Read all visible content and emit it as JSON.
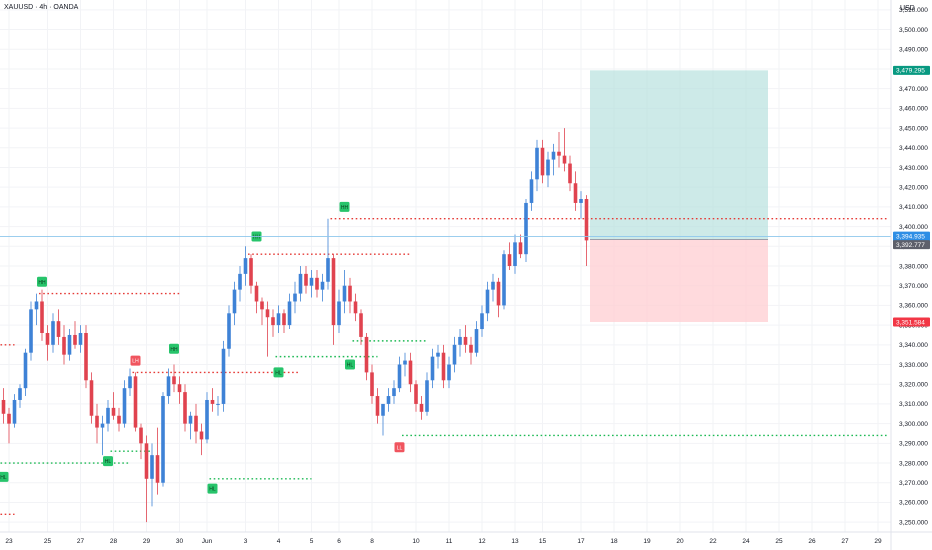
{
  "header": {
    "title": "XAUUSD · 4h · OANDA",
    "currency": "USD"
  },
  "colors": {
    "up": "#3e82d6",
    "down": "#e0434f",
    "profit_zone": "#b2dfdb",
    "loss_zone": "#ffcdd2",
    "take_profit_tag": "#089981",
    "stop_loss_tag": "#f23645",
    "last_price_tag": "#2e8ee5",
    "close_tag": "#5d606b",
    "resistance_line": "#e53935",
    "support_line": "#1db954",
    "swing_high_label": "#27c46b",
    "swing_low_label": "#f0555f",
    "last_price_line": "#8ec7ec"
  },
  "chart_data": {
    "type": "candlestick",
    "symbol": "XAUUSD",
    "interval": "4h",
    "exchange": "OANDA",
    "ylim": [
      3245,
      3515
    ],
    "y_ticks": [
      3250,
      3260,
      3270,
      3280,
      3290,
      3300,
      3310,
      3320,
      3330,
      3340,
      3350,
      3360,
      3370,
      3380,
      3390,
      3400,
      3410,
      3420,
      3430,
      3440,
      3450,
      3460,
      3470,
      3480,
      3490,
      3500,
      3510
    ],
    "y_tick_labels": [
      "3,250.000",
      "3,260.000",
      "3,270.000",
      "3,280.000",
      "3,290.000",
      "3,300.000",
      "3,310.000",
      "3,320.000",
      "3,330.000",
      "3,340.000",
      "3,350.000",
      "3,360.000",
      "3,370.000",
      "3,380.000",
      "3,390.000",
      "3,400.000",
      "3,410.000",
      "3,420.000",
      "3,430.000",
      "3,440.000",
      "3,450.000",
      "3,460.000",
      "3,470.000",
      "3,480.000",
      "3,490.000",
      "3,500.000",
      "3,510.000"
    ],
    "x_labels": [
      {
        "label": "23",
        "candle": 1
      },
      {
        "label": "25",
        "candle": 8
      },
      {
        "label": "27",
        "candle": 14
      },
      {
        "label": "28",
        "candle": 20
      },
      {
        "label": "29",
        "candle": 26
      },
      {
        "label": "30",
        "candle": 32
      },
      {
        "label": "Jun",
        "candle": 37
      },
      {
        "label": "3",
        "candle": 44
      },
      {
        "label": "4",
        "candle": 50
      },
      {
        "label": "5",
        "candle": 56
      },
      {
        "label": "6",
        "candle": 61
      },
      {
        "label": "8",
        "candle": 67
      },
      {
        "label": "10",
        "candle": 75
      },
      {
        "label": "11",
        "candle": 81
      },
      {
        "label": "12",
        "candle": 87
      },
      {
        "label": "13",
        "candle": 93
      },
      {
        "label": "15",
        "candle": 98
      },
      {
        "label": "17",
        "candle": 105
      },
      {
        "label": "18",
        "candle": 111
      },
      {
        "label": "19",
        "candle": 117
      },
      {
        "label": "20",
        "candle": 123
      },
      {
        "label": "22",
        "candle": 129
      },
      {
        "label": "24",
        "candle": 135
      },
      {
        "label": "25",
        "candle": 141
      },
      {
        "label": "26",
        "candle": 147
      },
      {
        "label": "27",
        "candle": 153
      },
      {
        "label": "29",
        "candle": 159
      }
    ],
    "candles": [
      [
        3312,
        3318,
        3300,
        3305
      ],
      [
        3305,
        3308,
        3290,
        3300
      ],
      [
        3300,
        3315,
        3298,
        3312
      ],
      [
        3312,
        3320,
        3308,
        3318
      ],
      [
        3318,
        3338,
        3314,
        3336
      ],
      [
        3336,
        3362,
        3332,
        3358
      ],
      [
        3358,
        3366,
        3350,
        3362
      ],
      [
        3362,
        3368,
        3342,
        3346
      ],
      [
        3346,
        3350,
        3332,
        3340
      ],
      [
        3340,
        3356,
        3336,
        3352
      ],
      [
        3352,
        3358,
        3340,
        3344
      ],
      [
        3344,
        3350,
        3330,
        3335
      ],
      [
        3335,
        3348,
        3332,
        3345
      ],
      [
        3345,
        3352,
        3338,
        3340
      ],
      [
        3340,
        3350,
        3336,
        3346
      ],
      [
        3346,
        3350,
        3318,
        3322
      ],
      [
        3322,
        3326,
        3300,
        3304
      ],
      [
        3304,
        3310,
        3290,
        3298
      ],
      [
        3298,
        3304,
        3284,
        3300
      ],
      [
        3300,
        3312,
        3296,
        3308
      ],
      [
        3308,
        3316,
        3302,
        3304
      ],
      [
        3304,
        3308,
        3296,
        3300
      ],
      [
        3300,
        3322,
        3298,
        3318
      ],
      [
        3318,
        3328,
        3314,
        3324
      ],
      [
        3324,
        3326,
        3296,
        3298
      ],
      [
        3298,
        3300,
        3282,
        3290
      ],
      [
        3290,
        3294,
        3250,
        3272
      ],
      [
        3272,
        3290,
        3258,
        3284
      ],
      [
        3284,
        3298,
        3264,
        3270
      ],
      [
        3270,
        3316,
        3268,
        3314
      ],
      [
        3314,
        3328,
        3310,
        3324
      ],
      [
        3324,
        3330,
        3316,
        3320
      ],
      [
        3320,
        3324,
        3310,
        3316
      ],
      [
        3316,
        3320,
        3296,
        3300
      ],
      [
        3300,
        3306,
        3292,
        3304
      ],
      [
        3304,
        3310,
        3290,
        3296
      ],
      [
        3296,
        3300,
        3284,
        3292
      ],
      [
        3292,
        3316,
        3290,
        3312
      ],
      [
        3312,
        3318,
        3306,
        3310
      ],
      [
        3310,
        3314,
        3304,
        3310
      ],
      [
        3310,
        3342,
        3306,
        3338
      ],
      [
        3338,
        3360,
        3334,
        3356
      ],
      [
        3356,
        3372,
        3350,
        3368
      ],
      [
        3368,
        3380,
        3362,
        3376
      ],
      [
        3376,
        3390,
        3370,
        3384
      ],
      [
        3384,
        3386,
        3366,
        3370
      ],
      [
        3370,
        3372,
        3356,
        3362
      ],
      [
        3362,
        3364,
        3350,
        3358
      ],
      [
        3358,
        3362,
        3334,
        3354
      ],
      [
        3354,
        3358,
        3344,
        3350
      ],
      [
        3350,
        3360,
        3346,
        3356
      ],
      [
        3356,
        3358,
        3346,
        3350
      ],
      [
        3350,
        3366,
        3348,
        3362
      ],
      [
        3362,
        3372,
        3356,
        3366
      ],
      [
        3366,
        3380,
        3362,
        3376
      ],
      [
        3376,
        3380,
        3366,
        3370
      ],
      [
        3370,
        3378,
        3364,
        3374
      ],
      [
        3374,
        3378,
        3364,
        3368
      ],
      [
        3368,
        3376,
        3362,
        3372
      ],
      [
        3372,
        3404,
        3368,
        3384
      ],
      [
        3384,
        3386,
        3340,
        3350
      ],
      [
        3350,
        3368,
        3346,
        3362
      ],
      [
        3362,
        3378,
        3356,
        3370
      ],
      [
        3370,
        3374,
        3356,
        3362
      ],
      [
        3362,
        3366,
        3352,
        3356
      ],
      [
        3356,
        3358,
        3340,
        3344
      ],
      [
        3344,
        3346,
        3322,
        3326
      ],
      [
        3326,
        3330,
        3310,
        3314
      ],
      [
        3314,
        3318,
        3300,
        3304
      ],
      [
        3304,
        3308,
        3294,
        3310
      ],
      [
        3310,
        3318,
        3306,
        3314
      ],
      [
        3314,
        3322,
        3310,
        3318
      ],
      [
        3318,
        3334,
        3316,
        3330
      ],
      [
        3330,
        3336,
        3324,
        3332
      ],
      [
        3332,
        3336,
        3316,
        3320
      ],
      [
        3320,
        3322,
        3306,
        3310
      ],
      [
        3310,
        3314,
        3302,
        3306
      ],
      [
        3306,
        3326,
        3304,
        3322
      ],
      [
        3322,
        3338,
        3318,
        3334
      ],
      [
        3334,
        3340,
        3328,
        3336
      ],
      [
        3336,
        3340,
        3318,
        3322
      ],
      [
        3322,
        3334,
        3318,
        3330
      ],
      [
        3330,
        3344,
        3326,
        3340
      ],
      [
        3340,
        3348,
        3334,
        3344
      ],
      [
        3344,
        3350,
        3336,
        3340
      ],
      [
        3340,
        3344,
        3330,
        3336
      ],
      [
        3336,
        3352,
        3334,
        3348
      ],
      [
        3348,
        3360,
        3344,
        3356
      ],
      [
        3356,
        3372,
        3352,
        3368
      ],
      [
        3368,
        3376,
        3362,
        3372
      ],
      [
        3372,
        3374,
        3354,
        3360
      ],
      [
        3360,
        3388,
        3358,
        3386
      ],
      [
        3386,
        3392,
        3378,
        3380
      ],
      [
        3380,
        3396,
        3376,
        3392
      ],
      [
        3392,
        3396,
        3384,
        3386
      ],
      [
        3386,
        3414,
        3382,
        3412
      ],
      [
        3412,
        3428,
        3408,
        3424
      ],
      [
        3424,
        3444,
        3418,
        3440
      ],
      [
        3440,
        3444,
        3422,
        3426
      ],
      [
        3426,
        3438,
        3420,
        3434
      ],
      [
        3434,
        3442,
        3426,
        3438
      ],
      [
        3438,
        3448,
        3430,
        3436
      ],
      [
        3436,
        3450,
        3428,
        3432
      ],
      [
        3432,
        3436,
        3418,
        3422
      ],
      [
        3422,
        3428,
        3408,
        3412
      ],
      [
        3412,
        3418,
        3404,
        3414
      ],
      [
        3414,
        3416,
        3380,
        3393
      ]
    ],
    "last_price": 3394.935,
    "last_price_label": "3,394.935",
    "countdown_label": "02:16:29",
    "close_price": 3392.777,
    "close_price_label": "3,392.777",
    "position": {
      "type": "long",
      "entry": 3393.5,
      "take_profit": 3479.295,
      "take_profit_label": "3,479.295",
      "stop_loss": 3351.584,
      "stop_loss_label": "3,351.584",
      "start_candle": 107,
      "end_candle": 139
    },
    "levels": [
      {
        "kind": "resistance",
        "price": 3340,
        "from_candle": 0,
        "to_candle": 2
      },
      {
        "kind": "resistance",
        "price": 3366,
        "from_candle": 7,
        "to_candle": 32
      },
      {
        "kind": "resistance",
        "price": 3326,
        "from_candle": 24,
        "to_candle": 54
      },
      {
        "kind": "resistance",
        "price": 3386,
        "from_candle": 45,
        "to_candle": 74
      },
      {
        "kind": "resistance",
        "price": 3404,
        "from_candle": 60,
        "to_candle": 175
      },
      {
        "kind": "resistance",
        "price": 3254,
        "from_candle": 0,
        "to_candle": 2
      },
      {
        "kind": "support",
        "price": 3280,
        "from_candle": 0,
        "to_candle": 23
      },
      {
        "kind": "support",
        "price": 3286,
        "from_candle": 20,
        "to_candle": 27
      },
      {
        "kind": "support",
        "price": 3272,
        "from_candle": 38,
        "to_candle": 56
      },
      {
        "kind": "support",
        "price": 3334,
        "from_candle": 50,
        "to_candle": 68
      },
      {
        "kind": "support",
        "price": 3342,
        "from_candle": 64,
        "to_candle": 77
      },
      {
        "kind": "support",
        "price": 3294,
        "from_candle": 73,
        "to_candle": 175
      }
    ],
    "swing_labels": [
      {
        "text": "HL",
        "candle": 0,
        "price": 3273,
        "kind": "low"
      },
      {
        "text": "HH",
        "candle": 7,
        "price": 3372,
        "kind": "high"
      },
      {
        "text": "HL",
        "candle": 19,
        "price": 3281,
        "kind": "low"
      },
      {
        "text": "LH",
        "candle": 24,
        "price": 3332,
        "kind": "highred"
      },
      {
        "text": "HH",
        "candle": 31,
        "price": 3338,
        "kind": "high"
      },
      {
        "text": "HL",
        "candle": 38,
        "price": 3267,
        "kind": "low"
      },
      {
        "text": "HH",
        "candle": 46,
        "price": 3395,
        "kind": "high"
      },
      {
        "text": "HL",
        "candle": 50,
        "price": 3326,
        "kind": "low"
      },
      {
        "text": "HH",
        "candle": 62,
        "price": 3410,
        "kind": "high"
      },
      {
        "text": "HL",
        "candle": 63,
        "price": 3330,
        "kind": "low"
      },
      {
        "text": "LL",
        "candle": 72,
        "price": 3288,
        "kind": "lowred"
      }
    ]
  }
}
